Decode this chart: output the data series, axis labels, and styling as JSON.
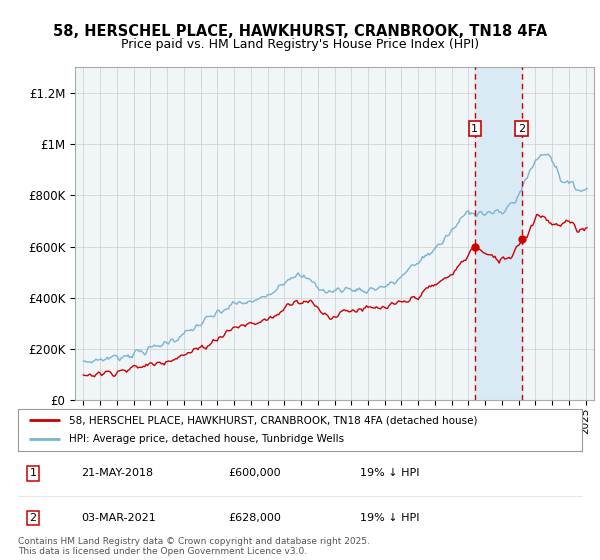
{
  "title1": "58, HERSCHEL PLACE, HAWKHURST, CRANBROOK, TN18 4FA",
  "title2": "Price paid vs. HM Land Registry's House Price Index (HPI)",
  "ylabel_ticks": [
    "£0",
    "£200K",
    "£400K",
    "£600K",
    "£800K",
    "£1M",
    "£1.2M"
  ],
  "ylim": [
    0,
    1300000
  ],
  "xlim_start": 1994.5,
  "xlim_end": 2025.5,
  "transaction1": {
    "label": "1",
    "date": "21-MAY-2018",
    "price": "£600,000",
    "hpi": "19% ↓ HPI",
    "year": 2018.38,
    "price_val": 600000
  },
  "transaction2": {
    "label": "2",
    "date": "03-MAR-2021",
    "price": "£628,000",
    "hpi": "19% ↓ HPI",
    "year": 2021.17,
    "price_val": 628000
  },
  "legend_line1": "58, HERSCHEL PLACE, HAWKHURST, CRANBROOK, TN18 4FA (detached house)",
  "legend_line2": "HPI: Average price, detached house, Tunbridge Wells",
  "footer1": "Contains HM Land Registry data © Crown copyright and database right 2025.",
  "footer2": "This data is licensed under the Open Government Licence v3.0.",
  "price_color": "#cc0000",
  "hpi_color": "#7ab3d4",
  "background_color": "#ffffff",
  "plot_bg_color": "#f0f5f8",
  "shade_color": "#daeaf5",
  "grid_color": "#cccccc"
}
